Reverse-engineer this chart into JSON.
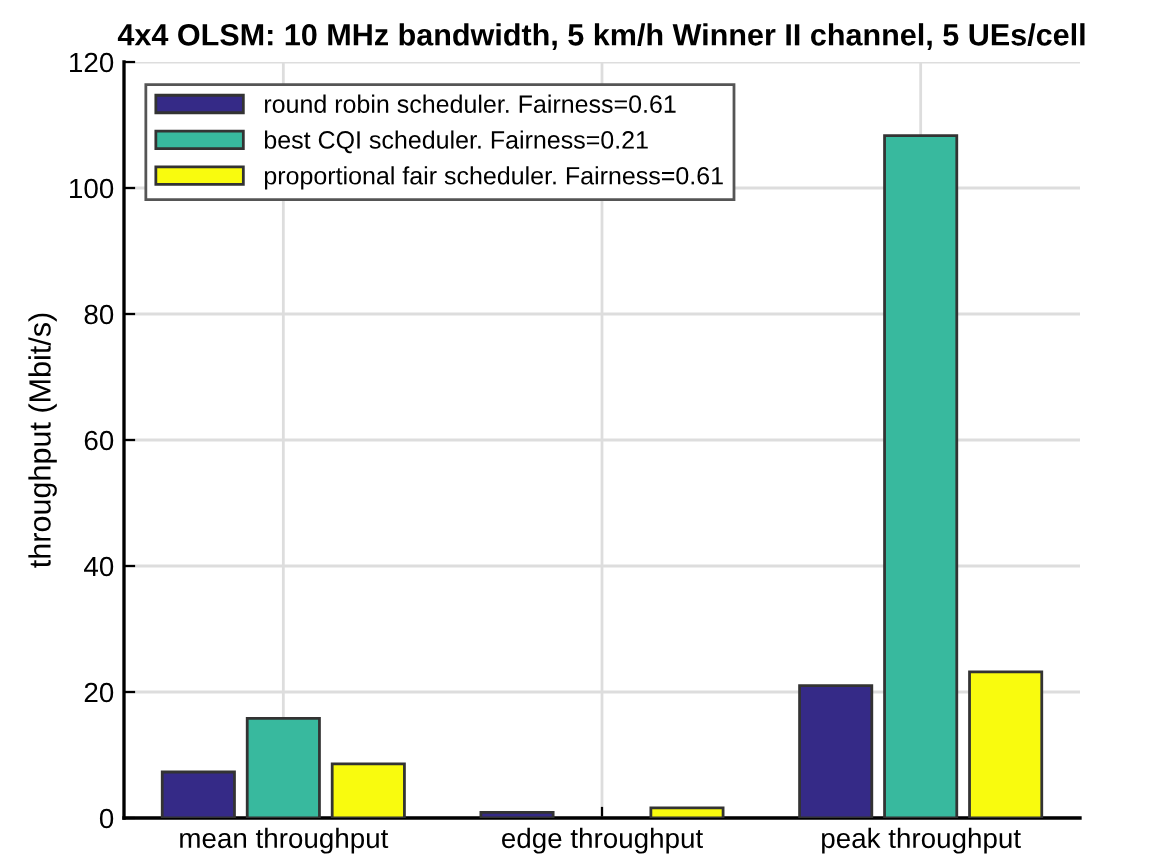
{
  "chart_data": {
    "type": "bar",
    "title": "4x4 OLSM: 10 MHz bandwidth, 5 km/h Winner II channel, 5 UEs/cell",
    "ylabel": "throughput (Mbit/s)",
    "categories": [
      "mean throughput",
      "edge throughput",
      "peak throughput"
    ],
    "series": [
      {
        "name": "round robin scheduler. Fairness=0.61",
        "color": "#352a87",
        "values": [
          7.3,
          0.9,
          21
        ]
      },
      {
        "name": "best CQI scheduler. Fairness=0.21",
        "color": "#38b99e",
        "values": [
          15.8,
          null,
          108.3
        ]
      },
      {
        "name": "proportional fair scheduler. Fairness=0.61",
        "color": "#f9fb0e",
        "values": [
          8.6,
          1.6,
          23.2
        ]
      }
    ],
    "ylim": [
      0,
      120
    ],
    "yticks": [
      0,
      20,
      40,
      60,
      80,
      100,
      120
    ],
    "grid": true,
    "legend": "top left"
  }
}
